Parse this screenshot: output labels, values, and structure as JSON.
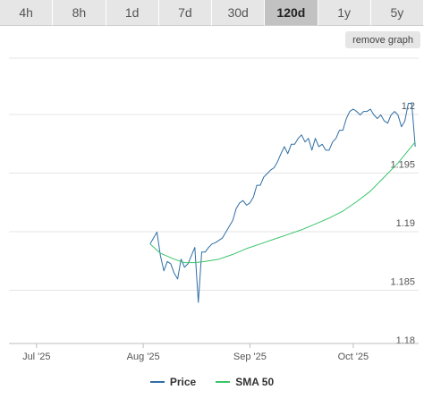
{
  "tabs": [
    {
      "label": "4h",
      "active": false
    },
    {
      "label": "8h",
      "active": false
    },
    {
      "label": "1d",
      "active": false
    },
    {
      "label": "7d",
      "active": false
    },
    {
      "label": "30d",
      "active": false
    },
    {
      "label": "120d",
      "active": true
    },
    {
      "label": "1y",
      "active": false
    },
    {
      "label": "5y",
      "active": false
    }
  ],
  "remove_button": "remove graph",
  "colors": {
    "price": "#2f6ea5",
    "sma": "#39c46a",
    "grid": "#e5e5e5"
  },
  "chart_data": {
    "type": "line",
    "x_ticks": [
      "Jul '25",
      "Aug '25",
      "Sep '25",
      "Oct '25"
    ],
    "y_ticks": [
      "1.18",
      "1.185",
      "1.19",
      "1.195",
      "1.2"
    ],
    "ylim": [
      1.18,
      1.2
    ],
    "xlim": [
      "2025-06-23",
      "2025-10-20"
    ],
    "grid": true,
    "legend_position": "bottom",
    "series": [
      {
        "name": "Price",
        "x": [
          "2025-08-03",
          "2025-08-04",
          "2025-08-05",
          "2025-08-06",
          "2025-08-07",
          "2025-08-08",
          "2025-08-09",
          "2025-08-10",
          "2025-08-11",
          "2025-08-12",
          "2025-08-13",
          "2025-08-14",
          "2025-08-15",
          "2025-08-16",
          "2025-08-17",
          "2025-08-18",
          "2025-08-19",
          "2025-08-20",
          "2025-08-21",
          "2025-08-22",
          "2025-08-23",
          "2025-08-24",
          "2025-08-25",
          "2025-08-26",
          "2025-08-27",
          "2025-08-28",
          "2025-08-29",
          "2025-08-30",
          "2025-08-31",
          "2025-09-01",
          "2025-09-02",
          "2025-09-03",
          "2025-09-04",
          "2025-09-05",
          "2025-09-06",
          "2025-09-07",
          "2025-09-08",
          "2025-09-09",
          "2025-09-10",
          "2025-09-11",
          "2025-09-12",
          "2025-09-13",
          "2025-09-14",
          "2025-09-15",
          "2025-09-16",
          "2025-09-17",
          "2025-09-18",
          "2025-09-19",
          "2025-09-20",
          "2025-09-21",
          "2025-09-22",
          "2025-09-23",
          "2025-09-24",
          "2025-09-25",
          "2025-09-26",
          "2025-09-27",
          "2025-09-28",
          "2025-09-29",
          "2025-09-30",
          "2025-10-01",
          "2025-10-02",
          "2025-10-03",
          "2025-10-04",
          "2025-10-05",
          "2025-10-06",
          "2025-10-07",
          "2025-10-08",
          "2025-10-09",
          "2025-10-10",
          "2025-10-11",
          "2025-10-12",
          "2025-10-13",
          "2025-10-14",
          "2025-10-15",
          "2025-10-16",
          "2025-10-17",
          "2025-10-18",
          "2025-10-19"
        ],
        "values": [
          1.1885,
          1.189,
          1.1895,
          1.1875,
          1.1862,
          1.187,
          1.1868,
          1.186,
          1.1855,
          1.1872,
          1.1865,
          1.1868,
          1.1875,
          1.1882,
          1.1835,
          1.1878,
          1.1878,
          1.1882,
          1.1885,
          1.1886,
          1.1888,
          1.189,
          1.1895,
          1.19,
          1.1905,
          1.1915,
          1.192,
          1.1922,
          1.1918,
          1.192,
          1.1925,
          1.1935,
          1.1935,
          1.1942,
          1.1945,
          1.1948,
          1.195,
          1.1955,
          1.1962,
          1.1968,
          1.1962,
          1.197,
          1.197,
          1.1975,
          1.1978,
          1.1972,
          1.1975,
          1.1965,
          1.1975,
          1.1968,
          1.197,
          1.1965,
          1.1965,
          1.1972,
          1.1975,
          1.1982,
          1.1982,
          1.1992,
          1.1998,
          1.2,
          1.1998,
          1.1995,
          1.1998,
          1.1998,
          1.2,
          1.1995,
          1.1992,
          1.1995,
          1.199,
          1.1988,
          1.1995,
          1.1998,
          1.1995,
          1.1985,
          1.199,
          1.2005,
          1.2005,
          1.1968
        ]
      },
      {
        "name": "SMA 50",
        "x": [
          "2025-08-03",
          "2025-08-06",
          "2025-08-10",
          "2025-08-13",
          "2025-08-16",
          "2025-08-19",
          "2025-08-23",
          "2025-08-27",
          "2025-08-31",
          "2025-09-04",
          "2025-09-08",
          "2025-09-12",
          "2025-09-16",
          "2025-09-20",
          "2025-09-24",
          "2025-09-28",
          "2025-10-02",
          "2025-10-06",
          "2025-10-10",
          "2025-10-14",
          "2025-10-19"
        ],
        "values": [
          1.1885,
          1.1877,
          1.1872,
          1.1869,
          1.1869,
          1.187,
          1.1872,
          1.1876,
          1.1881,
          1.1885,
          1.1889,
          1.1893,
          1.1897,
          1.1902,
          1.1907,
          1.1913,
          1.1921,
          1.193,
          1.1942,
          1.1954,
          1.1972
        ]
      }
    ]
  }
}
